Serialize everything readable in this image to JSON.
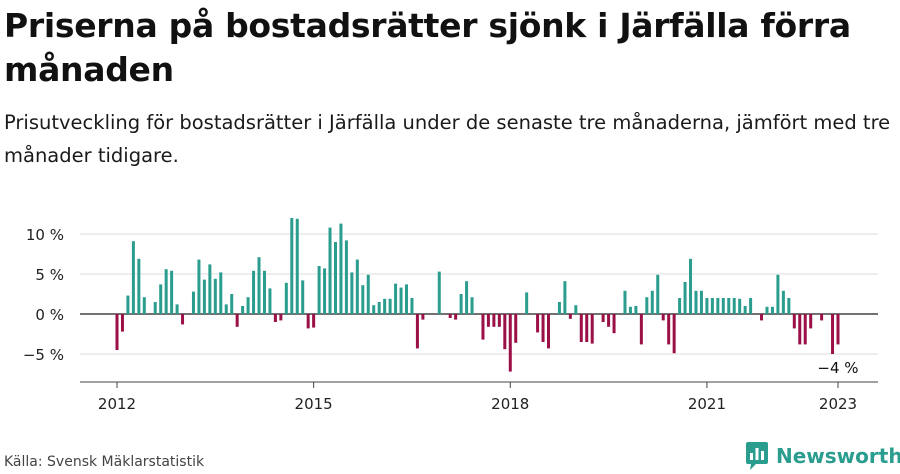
{
  "header": {
    "title": "Priserna på bostadsrätter sjönk i Järfälla förra månaden",
    "subtitle": "Prisutveckling för bostadsrätter i Järfälla under de senaste tre månaderna, jämfört med tre månader tidigare."
  },
  "footer": {
    "source": "Källa: Svensk Mäklarstatistik",
    "brand": "Newsworthy"
  },
  "colors": {
    "positive": "#2a9d8f",
    "negative": "#9b1046",
    "grid": "#dddddd",
    "axis": "#444444"
  },
  "chart_data": {
    "type": "bar",
    "x_start": "2012-01",
    "x_end": "2023-01",
    "values": [
      -4.5,
      -2.2,
      2.3,
      9.1,
      6.9,
      2.1,
      0,
      1.5,
      3.7,
      5.6,
      5.4,
      1.2,
      -1.3,
      0,
      2.8,
      6.8,
      4.3,
      6.2,
      4.4,
      5.2,
      1.2,
      2.5,
      -1.6,
      1,
      2.1,
      5.4,
      7.1,
      5.4,
      3.2,
      -1,
      -0.8,
      3.9,
      12,
      11.9,
      4.2,
      -1.8,
      -1.7,
      6,
      5.7,
      10.8,
      9,
      11.3,
      9.2,
      5.2,
      6.8,
      3.6,
      4.9,
      1.1,
      1.5,
      1.9,
      1.9,
      3.8,
      3.3,
      3.7,
      2,
      -4.3,
      -0.7,
      0,
      0,
      5.3,
      0,
      -0.5,
      -0.7,
      2.5,
      4.1,
      2.1,
      0,
      -3.2,
      -1.6,
      -1.6,
      -1.6,
      -4.4,
      -7.2,
      -3.6,
      0,
      2.7,
      0,
      -2.3,
      -3.5,
      -4.3,
      0,
      1.5,
      4.1,
      -0.6,
      1.1,
      -3.5,
      -3.5,
      -3.7,
      0,
      -1,
      -1.6,
      -2.4,
      0,
      2.9,
      0.9,
      1,
      -3.8,
      2.1,
      2.9,
      4.9,
      -0.8,
      -3.8,
      -4.9,
      2,
      4,
      6.9,
      2.9,
      2.9,
      2,
      2,
      2,
      2,
      2,
      2,
      1.9,
      1,
      2,
      0,
      -0.8,
      0.9,
      0.9,
      4.9,
      2.9,
      2,
      -1.8,
      -3.8,
      -3.8,
      -1.8,
      0,
      -0.8,
      0,
      -5,
      -3.8
    ],
    "yticks": [
      -5,
      0,
      5,
      10
    ],
    "ytick_labels": [
      "−5 %",
      "0 %",
      "5 %",
      "10 %"
    ],
    "ylim": [
      -8.5,
      12.5
    ],
    "xticks": [
      "2012-01",
      "2015-01",
      "2018-01",
      "2021-01",
      "2023-01"
    ],
    "xtick_labels": [
      "2012",
      "2015",
      "2018",
      "2021",
      "2023"
    ],
    "annotation": {
      "at": "2023-01",
      "text": "−4 %"
    },
    "grid": true
  }
}
